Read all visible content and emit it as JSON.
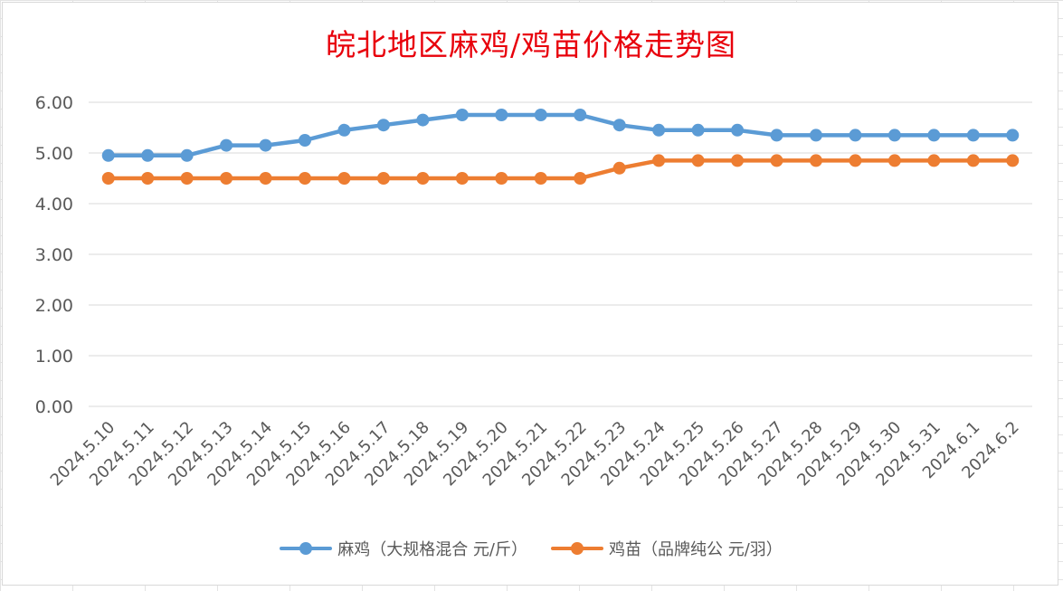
{
  "chart_data": {
    "type": "line",
    "title": "皖北地区麻鸡/鸡苗价格走势图",
    "categories": [
      "2024.5.10",
      "2024.5.11",
      "2024.5.12",
      "2024.5.13",
      "2024.5.14",
      "2024.5.15",
      "2024.5.16",
      "2024.5.17",
      "2024.5.18",
      "2024.5.19",
      "2024.5.20",
      "2024.5.21",
      "2024.5.22",
      "2024.5.23",
      "2024.5.24",
      "2024.5.25",
      "2024.5.26",
      "2024.5.27",
      "2024.5.28",
      "2024.5.29",
      "2024.5.30",
      "2024.5.31",
      "2024.6.1",
      "2024.6.2"
    ],
    "yticks": [
      "0.00",
      "1.00",
      "2.00",
      "3.00",
      "4.00",
      "5.00",
      "6.00"
    ],
    "ylim": [
      0,
      6
    ],
    "grid": true,
    "legend_position": "bottom",
    "series": [
      {
        "name": "麻鸡（大规格混合 元/斤）",
        "color": "#5b9bd5",
        "values": [
          4.95,
          4.95,
          4.95,
          5.15,
          5.15,
          5.25,
          5.45,
          5.55,
          5.65,
          5.75,
          5.75,
          5.75,
          5.75,
          5.55,
          5.45,
          5.45,
          5.45,
          5.35,
          5.35,
          5.35,
          5.35,
          5.35,
          5.35,
          5.35
        ]
      },
      {
        "name": "鸡苗（品牌纯公 元/羽）",
        "color": "#ed7d31",
        "values": [
          4.5,
          4.5,
          4.5,
          4.5,
          4.5,
          4.5,
          4.5,
          4.5,
          4.5,
          4.5,
          4.5,
          4.5,
          4.5,
          4.7,
          4.85,
          4.85,
          4.85,
          4.85,
          4.85,
          4.85,
          4.85,
          4.85,
          4.85,
          4.85
        ]
      }
    ]
  }
}
